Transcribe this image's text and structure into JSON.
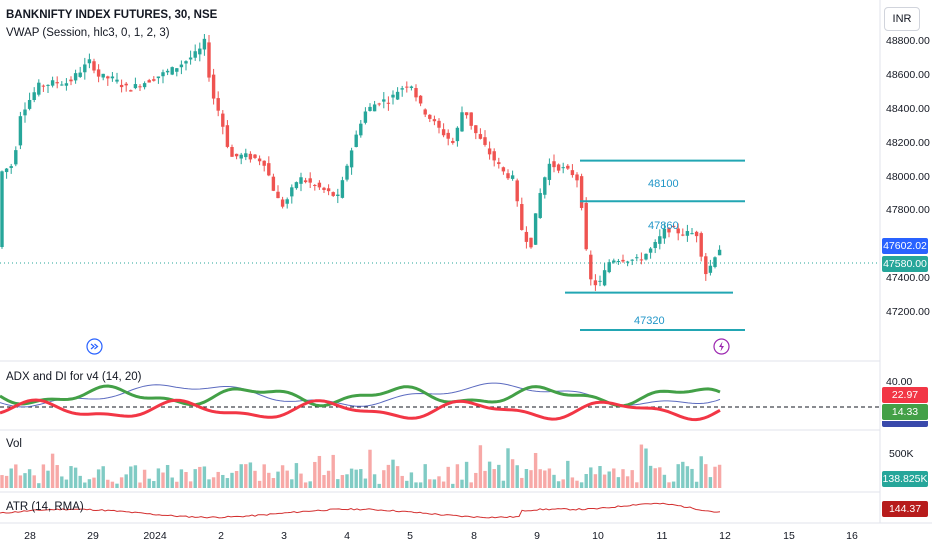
{
  "header": {
    "symbol_line": "BANKNIFTY INDEX FUTURES, 30, NSE",
    "indicator_line": "VWAP (Session, hlc3, 0, 1, 2, 3)"
  },
  "currency_button": "INR",
  "price_axis": {
    "ticks": [
      "48800.00",
      "48600.00",
      "48400.00",
      "48200.00",
      "48000.00",
      "47800.00",
      "47400.00",
      "47200.00"
    ],
    "tick_values": [
      48800,
      48600,
      48400,
      48200,
      48000,
      47800,
      47400,
      47200
    ],
    "range": [
      47080,
      48960
    ]
  },
  "price_tags": {
    "upper": "47602.02",
    "current": "47580.00"
  },
  "levels": [
    {
      "label": "48100",
      "value": 48100
    },
    {
      "label": "47860",
      "value": 47860
    },
    {
      "label": "47320",
      "value": 47320
    },
    {
      "label": "",
      "value": 47100
    }
  ],
  "adx_pane": {
    "title": "ADX and DI for v4 (14, 20)",
    "axis_tick": "40.00",
    "tags": {
      "red": "22.97",
      "green": "14.33"
    }
  },
  "vol_pane": {
    "title": "Vol",
    "axis_tick": "500K",
    "tag": "138.825K"
  },
  "atr_pane": {
    "title": "ATR (14, RMA)",
    "tag": "144.37"
  },
  "time_axis": {
    "labels": [
      "28",
      "29",
      "2024",
      "2",
      "3",
      "4",
      "5",
      "8",
      "9",
      "10",
      "11",
      "12",
      "15",
      "16"
    ]
  },
  "colors": {
    "up": "#26a69a",
    "down": "#ef5350",
    "level": "#22a6b3",
    "atr": "#d32f2f",
    "adx_line": "#5c6bc0",
    "di_plus": "#43a047",
    "di_minus": "#f23645",
    "vwap": "#2962ff"
  },
  "icons": [
    "replay-icon",
    "lightning-icon"
  ]
}
